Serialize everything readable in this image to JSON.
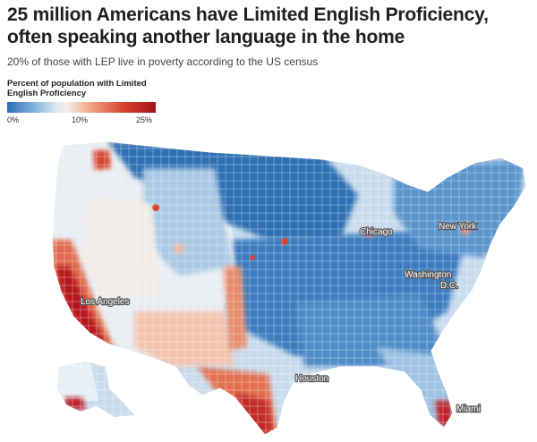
{
  "title": "25 million Americans have Limited English Proficiency, often speaking another language in the home",
  "subtitle": "20% of those with LEP live in poverty according to the US census",
  "legend": {
    "title": "Percent of population with Limited English Proficiency",
    "ticks": [
      "0%",
      "10%",
      "25%"
    ]
  },
  "cities": {
    "chicago": "Chicago",
    "new_york": "New York",
    "washington_line1": "Washington",
    "washington_line2": "D.C.",
    "los_angeles": "Los Angeles",
    "houston": "Houston",
    "miami": "Miami"
  },
  "colors": {
    "low": "#2a6fb8",
    "mid_low": "#9ec4e4",
    "neutral": "#f2f0ee",
    "mid_high": "#ef8a63",
    "high": "#a4121d"
  }
}
